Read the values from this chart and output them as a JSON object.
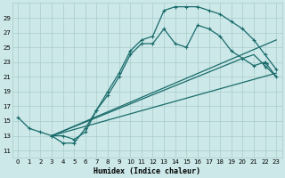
{
  "xlabel": "Humidex (Indice chaleur)",
  "bg_color": "#cce8e8",
  "grid_color": "#aacccc",
  "line_color": "#1a6b6b",
  "xlim": [
    -0.5,
    23.5
  ],
  "ylim": [
    10.0,
    31.0
  ],
  "yticks": [
    11,
    13,
    15,
    17,
    19,
    21,
    23,
    25,
    27,
    29
  ],
  "xticks": [
    0,
    1,
    2,
    3,
    4,
    5,
    6,
    7,
    8,
    9,
    10,
    11,
    12,
    13,
    14,
    15,
    16,
    17,
    18,
    19,
    20,
    21,
    22,
    23
  ],
  "curve_upper_x": [
    3,
    4,
    5,
    6,
    7,
    8,
    9,
    10,
    11,
    12,
    13,
    14,
    15,
    16,
    17,
    18,
    19,
    20,
    21,
    22,
    23
  ],
  "curve_upper_y": [
    13.0,
    12.0,
    12.0,
    14.0,
    16.5,
    19.0,
    21.5,
    24.5,
    26.0,
    26.5,
    30.0,
    30.5,
    30.5,
    30.5,
    30.0,
    29.5,
    28.5,
    27.5,
    26.0,
    24.0,
    22.0
  ],
  "curve_lower_x": [
    0,
    1,
    2,
    3,
    4,
    5,
    6,
    7,
    8,
    9,
    10,
    11,
    12,
    13,
    14,
    15,
    16,
    17,
    18,
    19,
    20,
    21,
    22,
    23
  ],
  "curve_lower_y": [
    15.5,
    14.0,
    13.5,
    13.0,
    13.0,
    12.5,
    13.5,
    16.5,
    18.5,
    21.0,
    24.0,
    25.5,
    25.5,
    27.5,
    25.5,
    25.0,
    28.0,
    27.5,
    26.5,
    24.5,
    23.5,
    22.5,
    23.0,
    21.0
  ],
  "line1_x": [
    3,
    23
  ],
  "line1_y": [
    13.0,
    26.0
  ],
  "line2_x": [
    3,
    23
  ],
  "line2_y": [
    13.0,
    21.5
  ],
  "line3_x": [
    3,
    20,
    21,
    22,
    23
  ],
  "line3_y": [
    13.0,
    23.5,
    24.0,
    22.5,
    21.0
  ],
  "triangle_x": [
    22
  ],
  "triangle_y": [
    22.5
  ]
}
